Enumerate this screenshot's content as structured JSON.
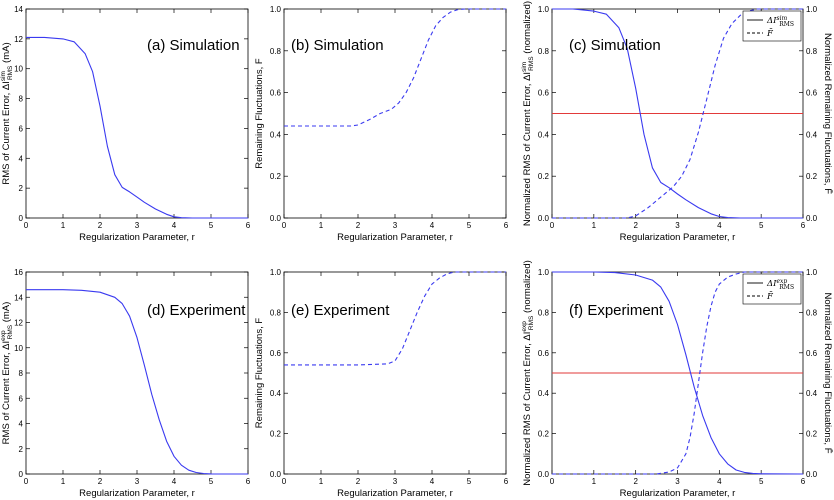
{
  "colors": {
    "curve": "#3a3af0",
    "threshold": "#e23a3a",
    "axis": "#000000",
    "background": "#ffffff"
  },
  "chart_data": [
    {
      "type": "line",
      "annotation": "(a) Simulation",
      "xlabel": "Regularization Parameter, r",
      "ylabel": "RMS of Current Error, ΔI_RMS^sim (mA)",
      "xlim": [
        0,
        6
      ],
      "ylim": [
        0,
        14
      ],
      "x_ticks": [
        "0",
        "1",
        "2",
        "3",
        "4",
        "5",
        "6"
      ],
      "y_ticks": [
        "0",
        "2",
        "4",
        "6",
        "8",
        "10",
        "12",
        "14"
      ],
      "series": [
        {
          "style": "solid",
          "x": [
            0,
            0.5,
            1,
            1.3,
            1.6,
            1.8,
            2,
            2.2,
            2.4,
            2.6,
            2.8,
            3,
            3.2,
            3.5,
            3.8,
            4,
            4.2,
            4.5,
            5,
            6
          ],
          "y": [
            12.1,
            12.1,
            12.0,
            11.8,
            11.0,
            9.8,
            7.5,
            4.8,
            2.9,
            2.05,
            1.75,
            1.4,
            1.05,
            0.6,
            0.25,
            0.08,
            0.02,
            0,
            0,
            0
          ]
        }
      ]
    },
    {
      "type": "line",
      "annotation": "(b) Simulation",
      "xlabel": "Regularization Parameter, r",
      "ylabel": "Remaining Fluctuations, F",
      "xlim": [
        0,
        6
      ],
      "ylim": [
        0,
        1.0
      ],
      "x_ticks": [
        "0",
        "1",
        "2",
        "3",
        "4",
        "5",
        "6"
      ],
      "y_ticks": [
        "0.0",
        "0.2",
        "0.4",
        "0.6",
        "0.8",
        "1.0"
      ],
      "series": [
        {
          "style": "dashed",
          "x": [
            0,
            1,
            1.8,
            2,
            2.3,
            2.6,
            2.9,
            3.1,
            3.3,
            3.5,
            3.7,
            3.9,
            4.1,
            4.3,
            4.5,
            4.7,
            4.9,
            5,
            5.2,
            6
          ],
          "y": [
            0.44,
            0.44,
            0.44,
            0.445,
            0.47,
            0.5,
            0.52,
            0.55,
            0.6,
            0.67,
            0.76,
            0.85,
            0.92,
            0.96,
            0.985,
            0.997,
            1,
            1,
            1,
            1
          ]
        }
      ]
    },
    {
      "type": "line",
      "annotation": "(c) Simulation",
      "xlabel": "Regularization Parameter, r",
      "ylabel": "Normalized RMS of Current Error, ΔI_RMS^sim (normalized)",
      "ylabel_right": "Normalized Remaining Fluctuations, F̄",
      "xlim": [
        0,
        6
      ],
      "ylim": [
        0,
        1.0
      ],
      "x_ticks": [
        "0",
        "1",
        "2",
        "3",
        "4",
        "5",
        "6"
      ],
      "y_ticks": [
        "0.0",
        "0.2",
        "0.4",
        "0.6",
        "0.8",
        "1.0"
      ],
      "threshold": 0.5,
      "legend": {
        "placement": "top-right",
        "entries": [
          "ΔI_RMS^sim",
          "F̄"
        ]
      },
      "series": [
        {
          "style": "solid",
          "x": [
            0,
            0.5,
            1,
            1.3,
            1.6,
            1.8,
            2,
            2.2,
            2.4,
            2.6,
            2.8,
            3,
            3.2,
            3.5,
            3.8,
            4,
            4.2,
            4.5,
            5,
            6
          ],
          "y": [
            1,
            1,
            0.99,
            0.975,
            0.91,
            0.81,
            0.62,
            0.4,
            0.24,
            0.17,
            0.145,
            0.115,
            0.087,
            0.05,
            0.02,
            0.007,
            0.002,
            0,
            0,
            0
          ]
        },
        {
          "style": "dashed",
          "x": [
            0,
            1,
            1.8,
            2,
            2.3,
            2.6,
            2.9,
            3.1,
            3.3,
            3.5,
            3.7,
            3.9,
            4.1,
            4.3,
            4.5,
            4.7,
            4.9,
            5,
            5.2,
            6
          ],
          "y": [
            0,
            0,
            0,
            0.01,
            0.05,
            0.1,
            0.15,
            0.2,
            0.28,
            0.41,
            0.57,
            0.73,
            0.86,
            0.93,
            0.97,
            0.99,
            1,
            1,
            1,
            1
          ]
        }
      ]
    },
    {
      "type": "line",
      "annotation": "(d) Experiment",
      "xlabel": "Regularization Parameter, r",
      "ylabel": "RMS of Current Error, ΔI_RMS^exp (mA)",
      "xlim": [
        0,
        6
      ],
      "ylim": [
        0,
        16
      ],
      "x_ticks": [
        "0",
        "1",
        "2",
        "3",
        "4",
        "5",
        "6"
      ],
      "y_ticks": [
        "0",
        "2",
        "4",
        "6",
        "8",
        "10",
        "12",
        "14",
        "16"
      ],
      "series": [
        {
          "style": "solid",
          "x": [
            0,
            0.5,
            1,
            1.5,
            2,
            2.4,
            2.6,
            2.8,
            3,
            3.2,
            3.4,
            3.6,
            3.8,
            4,
            4.2,
            4.4,
            4.6,
            4.8,
            5,
            6
          ],
          "y": [
            14.6,
            14.6,
            14.6,
            14.55,
            14.4,
            14.0,
            13.5,
            12.5,
            10.8,
            8.6,
            6.3,
            4.3,
            2.6,
            1.4,
            0.7,
            0.3,
            0.12,
            0.04,
            0.01,
            0
          ]
        }
      ]
    },
    {
      "type": "line",
      "annotation": "(e) Experiment",
      "xlabel": "Regularization Parameter, r",
      "ylabel": "Remaining Fluctuations, F",
      "xlim": [
        0,
        6
      ],
      "ylim": [
        0,
        1.0
      ],
      "x_ticks": [
        "0",
        "1",
        "2",
        "3",
        "4",
        "5",
        "6"
      ],
      "y_ticks": [
        "0.0",
        "0.2",
        "0.4",
        "0.6",
        "0.8",
        "1.0"
      ],
      "series": [
        {
          "style": "dashed",
          "x": [
            0,
            1,
            2,
            2.8,
            3,
            3.2,
            3.4,
            3.6,
            3.8,
            4,
            4.2,
            4.4,
            4.6,
            4.8,
            5,
            5.2,
            6
          ],
          "y": [
            0.54,
            0.54,
            0.54,
            0.545,
            0.56,
            0.62,
            0.71,
            0.8,
            0.88,
            0.94,
            0.97,
            0.99,
            1,
            1,
            1,
            1,
            1
          ]
        }
      ]
    },
    {
      "type": "line",
      "annotation": "(f) Experiment",
      "xlabel": "Regularization Parameter, r",
      "ylabel": "Normalized RMS of Current Error, ΔI_RMS^exp (normalized)",
      "ylabel_right": "Normalized Remaining Fluctuations, F̄",
      "xlim": [
        0,
        6
      ],
      "ylim": [
        0,
        1.0
      ],
      "x_ticks": [
        "0",
        "1",
        "2",
        "3",
        "4",
        "5",
        "6"
      ],
      "y_ticks": [
        "0.0",
        "0.2",
        "0.4",
        "0.6",
        "0.8",
        "1.0"
      ],
      "threshold": 0.5,
      "legend": {
        "placement": "top-right",
        "entries": [
          "ΔI_RMS^exp",
          "F̄"
        ]
      },
      "series": [
        {
          "style": "solid",
          "x": [
            0,
            0.5,
            1,
            1.5,
            2,
            2.4,
            2.6,
            2.8,
            3,
            3.2,
            3.4,
            3.6,
            3.8,
            4,
            4.2,
            4.4,
            4.6,
            4.8,
            5,
            6
          ],
          "y": [
            1,
            1,
            1,
            0.997,
            0.985,
            0.96,
            0.925,
            0.855,
            0.74,
            0.59,
            0.43,
            0.29,
            0.18,
            0.1,
            0.05,
            0.02,
            0.008,
            0.003,
            0.001,
            0
          ]
        },
        {
          "style": "dashed",
          "x": [
            0,
            2.5,
            2.8,
            3,
            3.2,
            3.3,
            3.4,
            3.5,
            3.6,
            3.7,
            3.8,
            3.9,
            4,
            4.2,
            4.4,
            4.6,
            4.8,
            5,
            6
          ],
          "y": [
            0,
            0,
            0.01,
            0.03,
            0.1,
            0.18,
            0.3,
            0.45,
            0.6,
            0.73,
            0.83,
            0.9,
            0.94,
            0.975,
            0.99,
            1,
            1,
            1,
            1
          ]
        }
      ]
    }
  ]
}
